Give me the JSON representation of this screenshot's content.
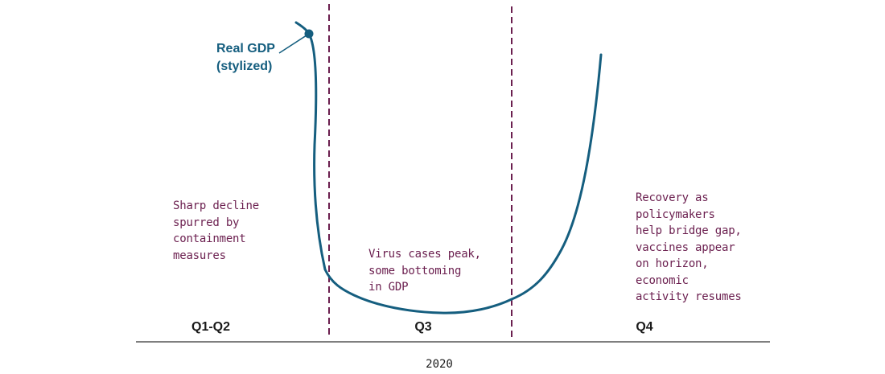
{
  "colors": {
    "curve": "#155e7f",
    "divider": "#6b1f4f",
    "annotation": "#6b1f4f",
    "axis": "#555555",
    "text": "#1a1a1a"
  },
  "series_label": "Real GDP\n(stylized)",
  "periods": [
    {
      "label": "Q1-Q2",
      "annotation": "Sharp decline\nspurred by\ncontainment\nmeasures"
    },
    {
      "label": "Q3",
      "annotation": "Virus cases peak,\nsome bottoming\nin GDP"
    },
    {
      "label": "Q4",
      "annotation": "Recovery as\npolicymakers\nhelp bridge gap,\nvaccines appear\non horizon,\neconomic\nactivity resumes"
    }
  ],
  "x_axis_label": "2020"
}
